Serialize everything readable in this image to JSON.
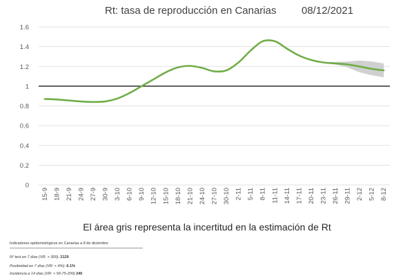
{
  "header": {
    "title": "Rt: tasa de reproducción en Canarias",
    "date": "08/12/2021"
  },
  "chart_data": {
    "type": "line",
    "title": "Rt: tasa de reproducción en Canarias",
    "xlabel": "",
    "ylabel": "",
    "ylim": [
      0,
      1.6
    ],
    "yticks": [
      "0",
      "0.2",
      "0.4",
      "0.6",
      "0.8",
      "1",
      "1.2",
      "1.4",
      "1.6"
    ],
    "grid": true,
    "reference_line": 1,
    "x": [
      "15-9",
      "18-9",
      "21-9",
      "24-9",
      "27-9",
      "30-9",
      "3-10",
      "6-10",
      "9-10",
      "12-10",
      "15-10",
      "18-10",
      "21-10",
      "24-10",
      "27-10",
      "30-10",
      "2-11",
      "5-11",
      "8-11",
      "11-11",
      "14-11",
      "17-11",
      "20-11",
      "23-11",
      "26-11",
      "29-11",
      "2-12",
      "5-12",
      "8-12"
    ],
    "series": [
      {
        "color": "#70ad47",
        "values": [
          0.87,
          0.865,
          0.855,
          0.845,
          0.84,
          0.845,
          0.875,
          0.93,
          1.0,
          1.07,
          1.14,
          1.19,
          1.205,
          1.185,
          1.15,
          1.16,
          1.24,
          1.36,
          1.455,
          1.455,
          1.38,
          1.31,
          1.265,
          1.24,
          1.23,
          1.22,
          1.2,
          1.175,
          1.16
        ]
      }
    ],
    "uncertainty_band": {
      "color": "#d0d0d0",
      "x": [
        "23-11",
        "26-11",
        "29-11",
        "2-12",
        "5-12",
        "8-12"
      ],
      "lower": [
        1.235,
        1.22,
        1.19,
        1.14,
        1.11,
        1.09
      ],
      "upper": [
        1.245,
        1.245,
        1.25,
        1.26,
        1.25,
        1.23
      ]
    }
  },
  "note": "El área gris representa la incertitud en la estimación de Rt",
  "indicators": {
    "title": "Indicadores epidemiológicos en Canarias a 8 de diciembre",
    "lines": [
      {
        "label": "Nº test en 7 días  (VR: > 300): ",
        "value": "2129"
      },
      {
        "label": "Positividad en 7 días (VR: < 4%): ",
        "value": "6.1%"
      },
      {
        "label": "Incidencia a 14 días (VR: < 50-75-200) ",
        "value": "240"
      }
    ]
  }
}
